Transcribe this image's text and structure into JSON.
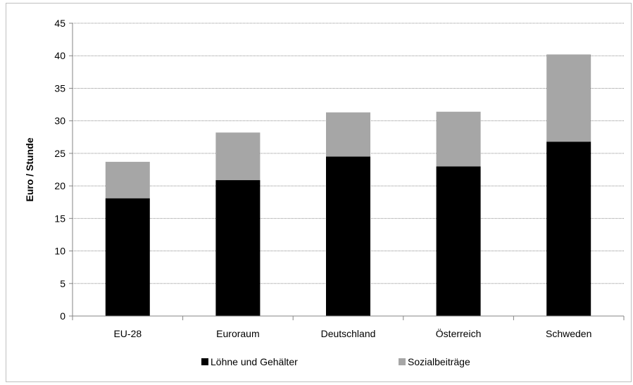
{
  "chart_data": {
    "type": "bar",
    "stacked": true,
    "categories": [
      "EU-28",
      "Euroraum",
      "Deutschland",
      "Österreich",
      "Schweden"
    ],
    "series": [
      {
        "name": "Löhne und Gehälter",
        "values": [
          18.1,
          20.9,
          24.5,
          23.0,
          26.8
        ],
        "color": "#000000"
      },
      {
        "name": "Sozialbeiträge",
        "values": [
          5.6,
          7.3,
          6.8,
          8.4,
          13.4
        ],
        "color": "#a6a6a6"
      }
    ],
    "title": "",
    "xlabel": "",
    "ylabel": "Euro / Stunde",
    "ylim": [
      0,
      45
    ],
    "yticks": [
      "0",
      "5",
      "10",
      "15",
      "20",
      "25",
      "30",
      "35",
      "40",
      "45"
    ],
    "grid": true,
    "legend_position": "bottom"
  }
}
